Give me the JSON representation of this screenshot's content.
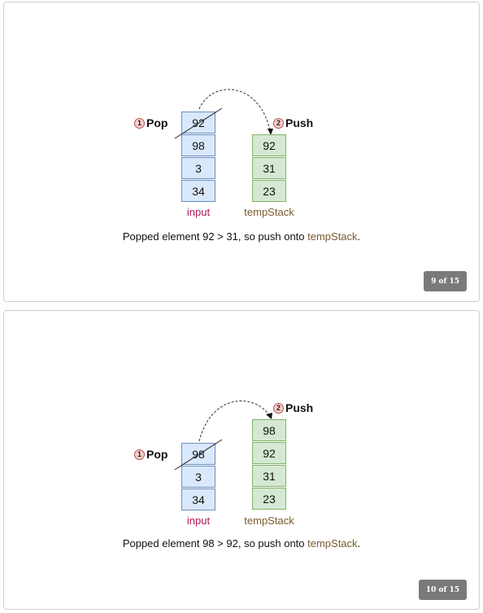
{
  "slides": [
    {
      "pop_label": "Pop",
      "push_label": "Push",
      "pop_step": "1",
      "push_step": "2",
      "input_label": "input",
      "temp_label": "tempStack",
      "input_stack": [
        "92",
        "98",
        "3",
        "34"
      ],
      "temp_stack": [
        "92",
        "31",
        "23"
      ],
      "caption_prefix": "Popped element 92 > 31, so push onto ",
      "caption_highlight": "tempStack",
      "caption_suffix": ".",
      "counter": "9 of 15"
    },
    {
      "pop_label": "Pop",
      "push_label": "Push",
      "pop_step": "1",
      "push_step": "2",
      "input_label": "input",
      "temp_label": "tempStack",
      "input_stack": [
        "98",
        "3",
        "34"
      ],
      "temp_stack": [
        "98",
        "92",
        "31",
        "23"
      ],
      "caption_prefix": "Popped element 98 > 92, so push onto ",
      "caption_highlight": "tempStack",
      "caption_suffix": ".",
      "counter": "10 of 15"
    }
  ],
  "colors": {
    "input_cell": "#dae8fc",
    "temp_cell": "#d5e8d4",
    "step_badge": "#f8cecc",
    "input_label": "#b5145b",
    "temp_label": "#7a5a2e",
    "counter_bg": "#7a7a7a"
  }
}
